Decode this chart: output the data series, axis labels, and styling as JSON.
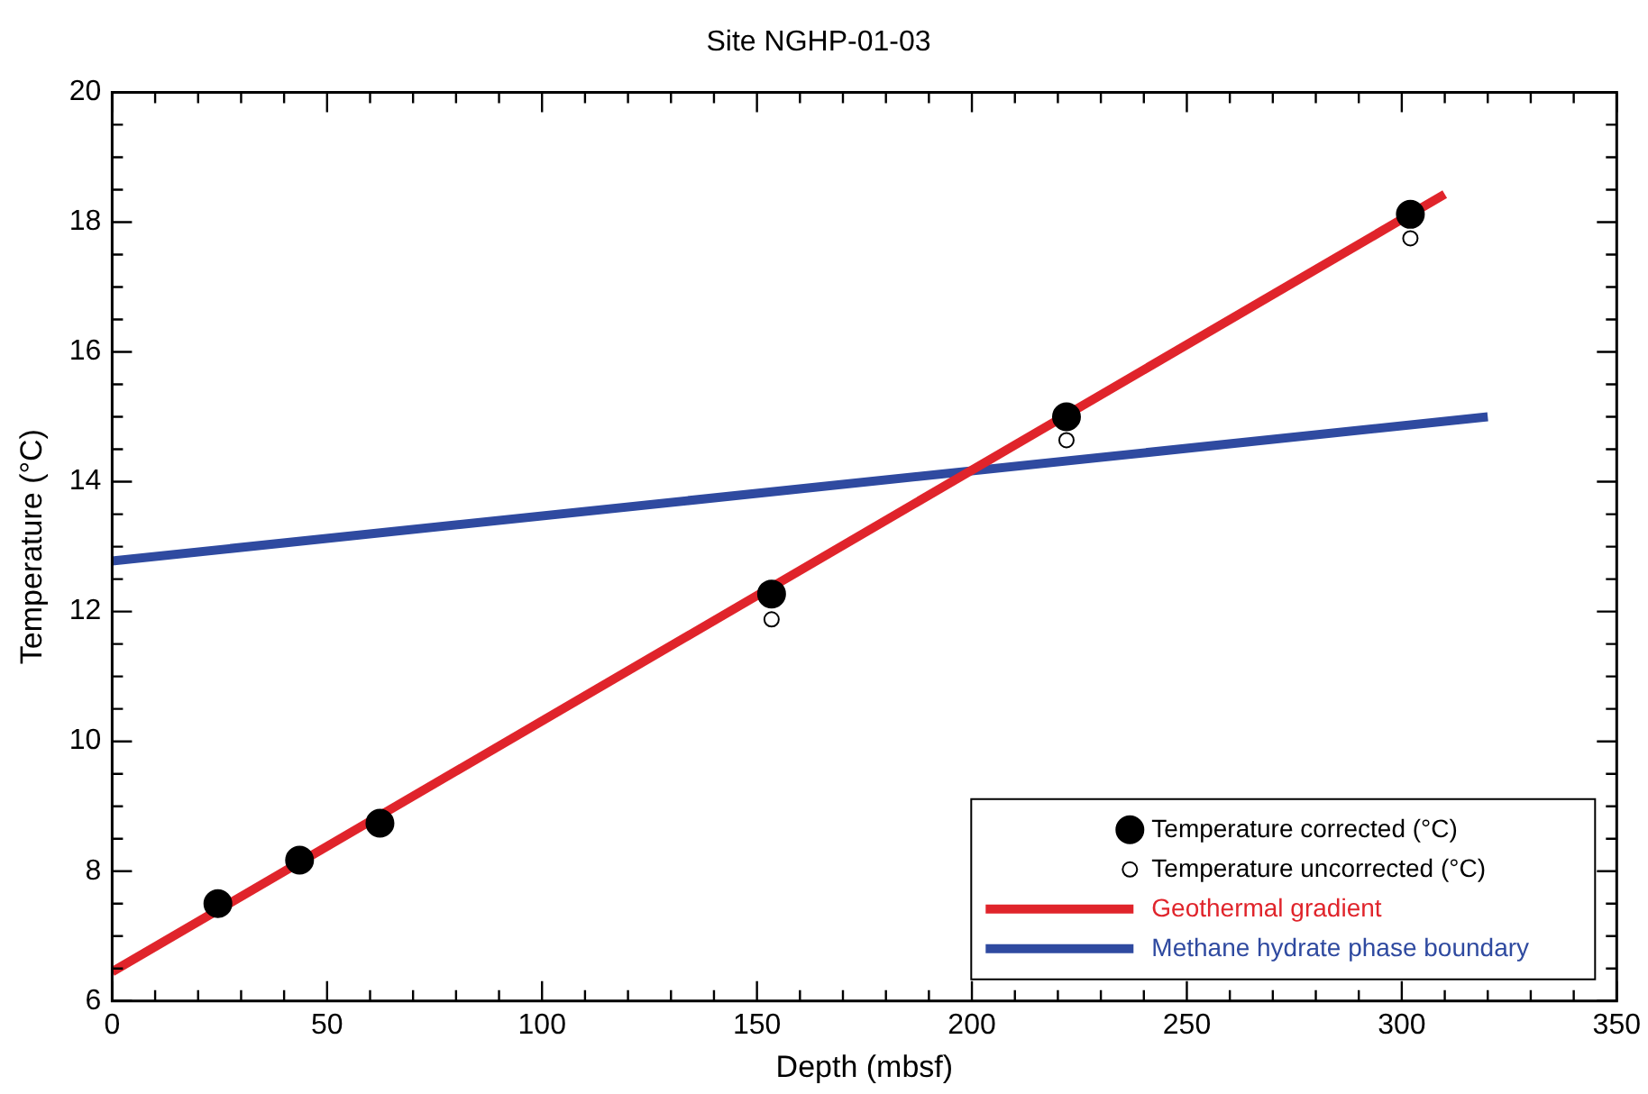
{
  "chart_data": {
    "type": "scatter",
    "title": "Site NGHP-01-03",
    "xlabel": "Depth (mbsf)",
    "ylabel": "Temperature (°C)",
    "xlim": [
      0,
      350
    ],
    "ylim": [
      6,
      20
    ],
    "xticks": [
      0,
      {
        "value": 10,
        "label": null
      },
      {
        "value": 20,
        "label": null
      },
      {
        "value": 30,
        "label": null
      },
      {
        "value": 40,
        "label": null
      },
      50,
      {
        "value": 60,
        "label": null
      },
      {
        "value": 70,
        "label": null
      },
      {
        "value": 80,
        "label": null
      },
      {
        "value": 90,
        "label": null
      },
      100,
      {
        "value": 110,
        "label": null
      },
      {
        "value": 120,
        "label": null
      },
      {
        "value": 130,
        "label": null
      },
      {
        "value": 140,
        "label": null
      },
      150,
      {
        "value": 160,
        "label": null
      },
      {
        "value": 170,
        "label": null
      },
      {
        "value": 180,
        "label": null
      },
      {
        "value": 190,
        "label": null
      },
      200,
      {
        "value": 210,
        "label": null
      },
      {
        "value": 220,
        "label": null
      },
      {
        "value": 230,
        "label": null
      },
      {
        "value": 240,
        "label": null
      },
      250,
      {
        "value": 260,
        "label": null
      },
      {
        "value": 270,
        "label": null
      },
      {
        "value": 280,
        "label": null
      },
      {
        "value": 290,
        "label": null
      },
      300,
      {
        "value": 310,
        "label": null
      },
      {
        "value": 320,
        "label": null
      },
      {
        "value": 330,
        "label": null
      },
      {
        "value": 340,
        "label": null
      },
      350
    ],
    "yticks": [
      6,
      {
        "value": 6.5,
        "label": null
      },
      {
        "value": 7,
        "label": null
      },
      {
        "value": 7.5,
        "label": null
      },
      8,
      {
        "value": 8.5,
        "label": null
      },
      {
        "value": 9,
        "label": null
      },
      {
        "value": 9.5,
        "label": null
      },
      10,
      {
        "value": 10.5,
        "label": null
      },
      {
        "value": 11,
        "label": null
      },
      {
        "value": 11.5,
        "label": null
      },
      12,
      {
        "value": 12.5,
        "label": null
      },
      {
        "value": 13,
        "label": null
      },
      {
        "value": 13.5,
        "label": null
      },
      14,
      {
        "value": 14.5,
        "label": null
      },
      {
        "value": 15,
        "label": null
      },
      {
        "value": 15.5,
        "label": null
      },
      16,
      {
        "value": 16.5,
        "label": null
      },
      {
        "value": 17,
        "label": null
      },
      {
        "value": 17.5,
        "label": null
      },
      18,
      {
        "value": 18.5,
        "label": null
      },
      {
        "value": 19,
        "label": null
      },
      {
        "value": 19.5,
        "label": null
      },
      20
    ],
    "grid": false,
    "legend": "bottom right",
    "marker": "circle",
    "line_style": "solid",
    "series": [
      {
        "name": "Temperature corrected (°C)",
        "type": "scatter",
        "color": "#000000",
        "x": [
          24.6,
          43.6,
          62.3,
          153.4,
          222,
          302
        ],
        "values": [
          7.5,
          8.17,
          8.74,
          12.27,
          15.0,
          18.12
        ]
      },
      {
        "name": "Temperature uncorrected (°C)",
        "type": "scatter",
        "color": "#000000",
        "x": [
          153.4,
          222,
          302
        ],
        "values": [
          11.88,
          14.64,
          17.75
        ]
      },
      {
        "name": "Geothermal gradient",
        "type": "line",
        "marker": "none",
        "color": "#e0242b",
        "x": [
          0,
          310
        ],
        "values": [
          6.45,
          18.43
        ]
      },
      {
        "name": "Methane hydrate phase boundary",
        "type": "line",
        "marker": "none",
        "color": "#2f4aa0",
        "x": [
          0,
          320
        ],
        "values": [
          12.78,
          15.0
        ]
      }
    ]
  }
}
